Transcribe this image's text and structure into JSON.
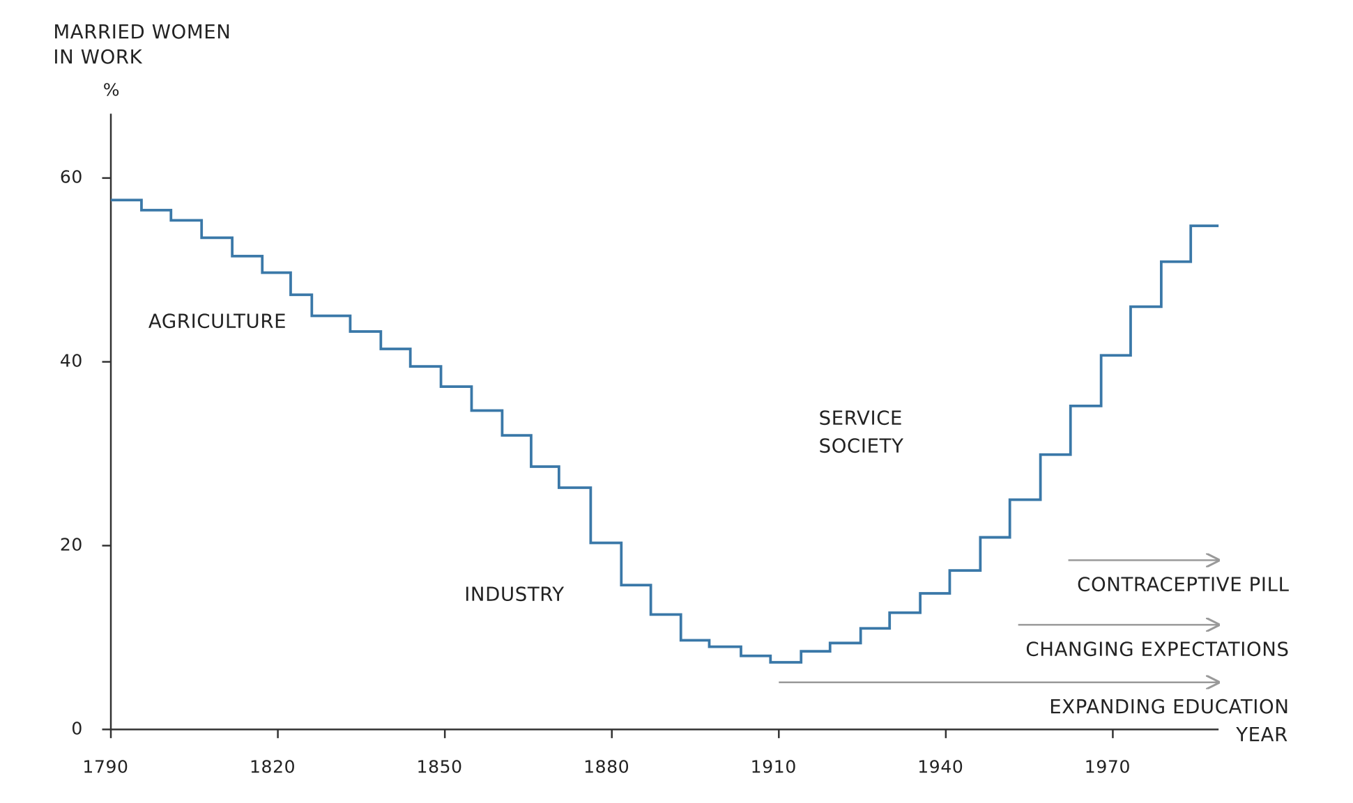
{
  "chart_data": {
    "type": "step",
    "y_label": [
      "MARRIED WOMEN",
      "IN WORK"
    ],
    "y_unit": "%",
    "x_label": "YEAR",
    "x": [
      1790,
      1795.5,
      1800.8,
      1806.3,
      1811.8,
      1817.2,
      1822.3,
      1826.1,
      1833,
      1838.5,
      1843.8,
      1849.3,
      1854.8,
      1860.3,
      1865.5,
      1870.5,
      1876.2,
      1881.7,
      1887,
      1892.4,
      1897.5,
      1903.2,
      1908.5,
      1914,
      1919.2,
      1924.7,
      1929.9,
      1935.4,
      1940.7,
      1946.2,
      1951.5,
      1957,
      1962.4,
      1967.9,
      1973.2,
      1978.7,
      1984
    ],
    "series": [
      {
        "name": "Married women in work",
        "color": "#3a78a8",
        "values": [
          57.6,
          56.5,
          55.4,
          53.5,
          51.5,
          49.7,
          47.3,
          45.0,
          43.3,
          41.4,
          39.5,
          37.3,
          34.7,
          32.0,
          28.6,
          26.3,
          20.3,
          15.7,
          12.5,
          9.7,
          9.0,
          8.0,
          7.3,
          8.5,
          9.4,
          11.0,
          12.7,
          14.8,
          17.3,
          20.9,
          25.0,
          29.9,
          35.2,
          40.7,
          46.0,
          50.9,
          54.8
        ]
      }
    ],
    "xlim": [
      1790,
      1989
    ],
    "xticks": [
      1790,
      1820,
      1850,
      1880,
      1910,
      1940,
      1970
    ],
    "ylim": [
      0,
      67
    ],
    "yticks": [
      0,
      20,
      40,
      60
    ],
    "annotations": [
      {
        "text": "AGRICULTURE"
      },
      {
        "text": "INDUSTRY"
      },
      {
        "text": [
          "SERVICE",
          "SOCIETY"
        ]
      }
    ],
    "trends": [
      {
        "text": "CONTRACEPTIVE PILL",
        "start": 1962
      },
      {
        "text": "CHANGING EXPECTATIONS",
        "start": 1953
      },
      {
        "text": "EXPANDING EDUCATION",
        "start": 1910
      }
    ]
  }
}
